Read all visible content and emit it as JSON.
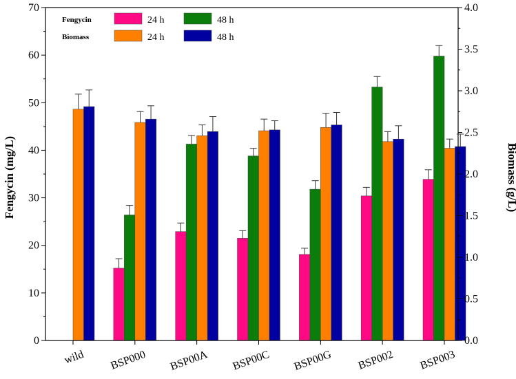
{
  "chart_data": {
    "type": "bar",
    "categories": [
      "wild",
      "BSP000",
      "BSP00A",
      "BSP00C",
      "BSP00G",
      "BSP002",
      "BSP003"
    ],
    "left_axis": {
      "label": "Fengycin (mg/L)",
      "ylim": [
        0,
        70
      ],
      "ticks": [
        0,
        10,
        20,
        30,
        40,
        50,
        60,
        70
      ],
      "tick_labels": [
        "0",
        "10",
        "20",
        "30",
        "40",
        "50",
        "60",
        "70"
      ]
    },
    "right_axis": {
      "label": "Biomass (g/L)",
      "ylim": [
        0,
        4
      ],
      "ticks": [
        0,
        0.5,
        1,
        1.5,
        2,
        2.5,
        3,
        3.5,
        4
      ],
      "tick_labels": [
        "0.0",
        "0.5",
        "1.0",
        "1.5",
        "2.0",
        "2.5",
        "3.0",
        "3.5",
        "4.0"
      ]
    },
    "series": [
      {
        "group": "Fengycin",
        "name": "24 h",
        "axis": "left",
        "color": "#ff0a84",
        "values": [
          null,
          15.2,
          22.9,
          21.5,
          18.1,
          30.4,
          33.9
        ],
        "errors": [
          null,
          2.0,
          1.8,
          1.6,
          1.3,
          1.8,
          2.0
        ]
      },
      {
        "group": "Fengycin",
        "name": "48 h",
        "axis": "left",
        "color": "#0a7d0a",
        "values": [
          null,
          26.4,
          41.3,
          38.8,
          31.8,
          53.3,
          59.8
        ],
        "errors": [
          null,
          2.0,
          1.8,
          1.6,
          1.8,
          2.2,
          2.2
        ]
      },
      {
        "group": "Biomass",
        "name": "24 h",
        "axis": "right",
        "color": "#ff8000",
        "values": [
          2.78,
          2.62,
          2.46,
          2.52,
          2.56,
          2.39,
          2.31
        ],
        "errors": [
          0.18,
          0.13,
          0.13,
          0.14,
          0.17,
          0.12,
          0.11
        ]
      },
      {
        "group": "Biomass",
        "name": "48 h",
        "axis": "right",
        "color": "#0000a0",
        "values": [
          2.81,
          2.66,
          2.51,
          2.53,
          2.59,
          2.42,
          2.33
        ],
        "errors": [
          0.2,
          0.16,
          0.18,
          0.11,
          0.15,
          0.16,
          0.15
        ]
      }
    ],
    "legend": {
      "position": "top-left",
      "group_labels": [
        "Fengycin",
        "Biomass"
      ]
    }
  }
}
